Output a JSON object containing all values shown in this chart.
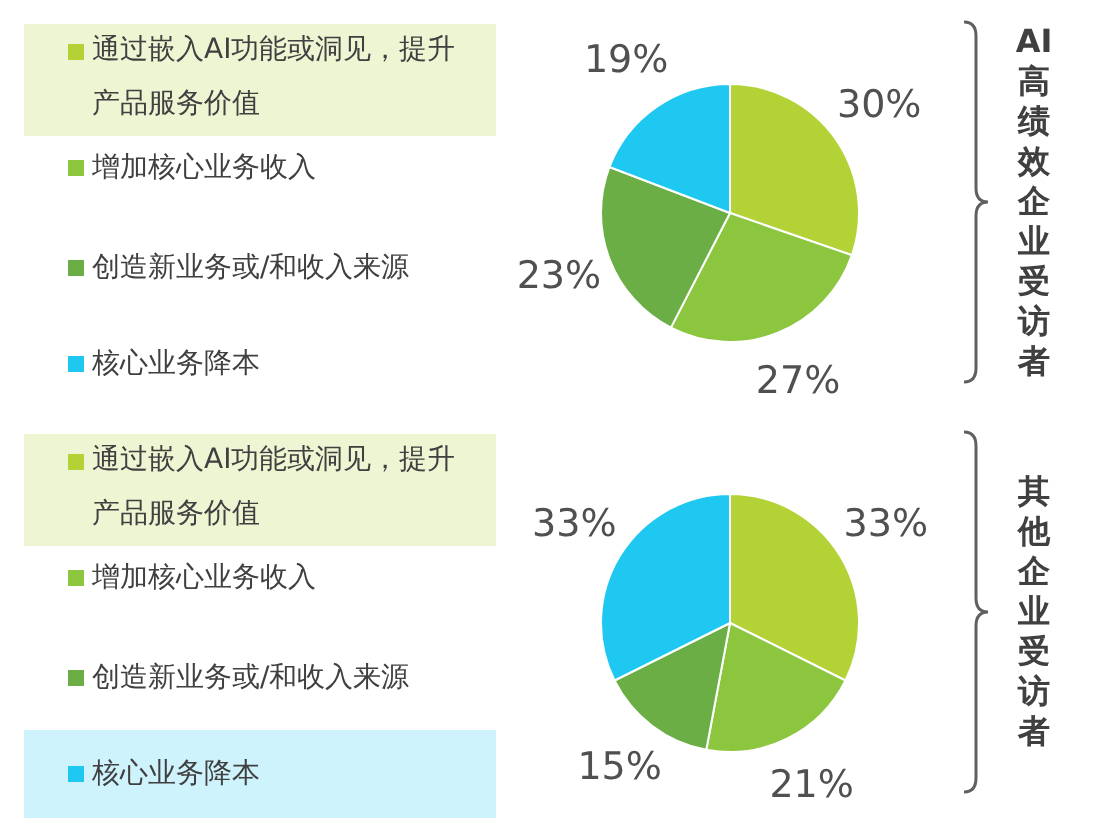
{
  "chart_data": [
    {
      "type": "pie",
      "title": "AI高绩效企业受访者",
      "categories": [
        "通过嵌入AI功能或洞见，提升产品服务价值",
        "增加核心业务收入",
        "创造新业务或/和收入来源",
        "核心业务降本"
      ],
      "values": [
        30,
        27,
        23,
        19
      ],
      "value_labels": [
        "30%",
        "27%",
        "23%",
        "19%"
      ],
      "colors": [
        "#b2d235",
        "#8cc63f",
        "#6aae45",
        "#1ec8f0"
      ],
      "legend": "left"
    },
    {
      "type": "pie",
      "title": "其他企业受访者",
      "categories": [
        "通过嵌入AI功能或洞见，提升产品服务价值",
        "增加核心业务收入",
        "创造新业务或/和收入来源",
        "核心业务降本"
      ],
      "values": [
        33,
        21,
        15,
        33
      ],
      "value_labels": [
        "33%",
        "21%",
        "15%",
        "33%"
      ],
      "colors": [
        "#b2d235",
        "#8cc63f",
        "#6aae45",
        "#1ec8f0"
      ],
      "legend": "left"
    }
  ]
}
